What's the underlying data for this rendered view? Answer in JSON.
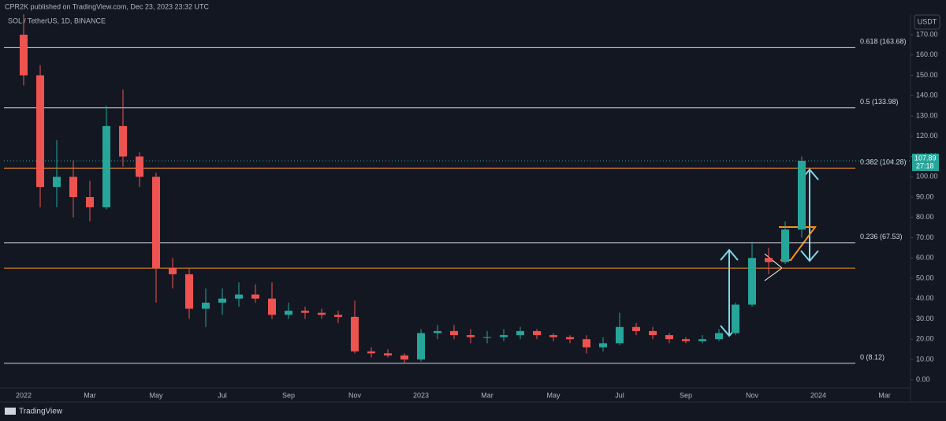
{
  "header": "CPR2K published on TradingView.com, Dec 23, 2023 23:32 UTC",
  "footer": "TradingView",
  "chart_data": {
    "type": "candlestick",
    "title": "SOL / TetherUS, 1D, BINANCE",
    "currency": "USDT",
    "up_color": "#26a69a",
    "down_color": "#ef5350",
    "categories": [
      "2022",
      null,
      null,
      null,
      "Mar",
      null,
      null,
      null,
      "May",
      null,
      null,
      null,
      "Jul",
      null,
      null,
      null,
      "Sep",
      null,
      null,
      null,
      "Nov",
      null,
      null,
      null,
      "2023",
      null,
      null,
      null,
      "Mar",
      null,
      null,
      null,
      "May",
      null,
      null,
      null,
      "Jul",
      null,
      null,
      null,
      "Sep",
      null,
      null,
      null,
      "Nov",
      null,
      null,
      null,
      "2024",
      null,
      null,
      null,
      "Mar",
      null
    ],
    "open": [
      170,
      150,
      95,
      100,
      90,
      85,
      125,
      110,
      100,
      55,
      52,
      35,
      38,
      40,
      42,
      40,
      32,
      34,
      33,
      32,
      31,
      14,
      13,
      12,
      10,
      23,
      24,
      22,
      21,
      21,
      22,
      24,
      22,
      21,
      20,
      16,
      18,
      26,
      24,
      22,
      20,
      19,
      20,
      23,
      37,
      60,
      58,
      74,
      null,
      null,
      null,
      null,
      null,
      null
    ],
    "high": [
      180,
      155,
      118,
      108,
      98,
      135,
      143,
      112,
      102,
      60,
      55,
      45,
      45,
      48,
      47,
      48,
      38,
      36,
      35,
      34,
      39,
      16,
      15,
      13,
      25,
      27,
      27,
      25,
      24,
      25,
      26,
      25,
      23,
      22,
      22,
      21,
      33,
      28,
      26,
      23,
      21,
      22,
      25,
      38,
      68,
      65,
      78,
      110,
      null,
      null,
      null,
      null,
      null,
      null
    ],
    "low": [
      145,
      85,
      85,
      80,
      78,
      84,
      105,
      95,
      38,
      45,
      30,
      26,
      32,
      36,
      38,
      30,
      30,
      30,
      30,
      28,
      13,
      11,
      11,
      8,
      9,
      20,
      20,
      18,
      18,
      19,
      20,
      20,
      19,
      18,
      13,
      14,
      17,
      22,
      20,
      18,
      18,
      18,
      19,
      22,
      36,
      52,
      57,
      70,
      null,
      null,
      null,
      null,
      null,
      null
    ],
    "close": [
      150,
      95,
      100,
      90,
      85,
      125,
      110,
      100,
      55,
      52,
      35,
      38,
      40,
      42,
      40,
      32,
      34,
      33,
      32,
      31,
      14,
      13,
      12,
      10,
      23,
      24,
      22,
      21,
      21,
      22,
      24,
      22,
      21,
      20,
      16,
      18,
      26,
      24,
      22,
      20,
      19,
      20,
      23,
      37,
      60,
      58,
      74,
      107.89,
      null,
      null,
      null,
      null,
      null,
      null
    ],
    "ylim": [
      -4,
      184
    ],
    "yticks": [
      {
        "value": 0,
        "label": "0.00"
      },
      {
        "value": 10,
        "label": "10.00"
      },
      {
        "value": 20,
        "label": "20.00"
      },
      {
        "value": 30,
        "label": "30.00"
      },
      {
        "value": 40,
        "label": "40.00"
      },
      {
        "value": 50,
        "label": "50.00"
      },
      {
        "value": 60,
        "label": "60.00"
      },
      {
        "value": 70,
        "label": "70.00"
      },
      {
        "value": 80,
        "label": "80.00"
      },
      {
        "value": 90,
        "label": "90.00"
      },
      {
        "value": 100,
        "label": "100.00"
      },
      {
        "value": 110,
        "label": "110.00"
      },
      {
        "value": 120,
        "label": "120.00"
      },
      {
        "value": 130,
        "label": "130.00"
      },
      {
        "value": 140,
        "label": "140.00"
      },
      {
        "value": 150,
        "label": "150.00"
      },
      {
        "value": 160,
        "label": "160.00"
      },
      {
        "value": 170,
        "label": "170.00"
      }
    ],
    "levels": [
      {
        "value": 163.68,
        "label": "0.618 (163.68)",
        "color": "#d1d4dc"
      },
      {
        "value": 133.98,
        "label": "0.5 (133.98)",
        "color": "#d1d4dc"
      },
      {
        "value": 104.28,
        "label": "0.382 (104.28)",
        "color": "#f7931a"
      },
      {
        "value": 67.53,
        "label": "0.236 (67.53)",
        "color": "#d1d4dc"
      },
      {
        "value": 55,
        "color": "#f7931a"
      },
      {
        "value": 8.12,
        "label": "0 (8.12)",
        "color": "#d1d4dc"
      }
    ],
    "last_price": 107.89,
    "countdown": "27:18"
  }
}
